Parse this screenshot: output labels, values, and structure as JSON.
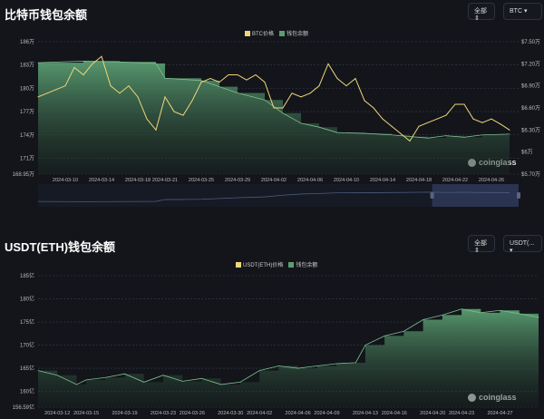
{
  "colors": {
    "price": "#f0d67a",
    "balance": "#5a9e72",
    "grid": "#3a3e48",
    "text": "#bbbbbb"
  },
  "chart_data": [
    {
      "type": "line",
      "title": "比特币钱包余额",
      "filter_label": "全部",
      "coin_label": "BTC",
      "legend": [
        "BTC价格",
        "钱包余额"
      ],
      "brand": "coinglass",
      "left_ticks": [
        "186万",
        "183万",
        "180万",
        "177万",
        "174万",
        "171万",
        "168.95万"
      ],
      "left_values": [
        186,
        183,
        180,
        177,
        174,
        171,
        168.95
      ],
      "ylim_left": [
        168.95,
        186
      ],
      "right_ticks": [
        "$7.50万",
        "$7.20万",
        "$6.90万",
        "$6.60万",
        "$6.30万",
        "$6万",
        "$5.70万"
      ],
      "right_values": [
        7.5,
        7.2,
        6.9,
        6.6,
        6.3,
        6.0,
        5.7
      ],
      "ylim_right": [
        5.7,
        7.5
      ],
      "x_ticks": [
        "2024-03-10",
        "2024-03-14",
        "2024-03-18",
        "2024-03-21",
        "2024-03-25",
        "2024-03-29",
        "2024-04-02",
        "2024-04-06",
        "2024-04-10",
        "2024-04-14",
        "2024-04-18",
        "2024-04-22",
        "2024-04-26"
      ],
      "xlim": [
        "2024-03-07",
        "2024-04-29"
      ],
      "balance": [
        [
          "2024-03-07",
          183.3
        ],
        [
          "2024-03-12",
          183.5
        ],
        [
          "2024-03-16",
          183.4
        ],
        [
          "2024-03-20",
          183.2
        ],
        [
          "2024-03-21",
          181.3
        ],
        [
          "2024-03-25",
          181.0
        ],
        [
          "2024-03-27",
          180.2
        ],
        [
          "2024-03-29",
          179.4
        ],
        [
          "2024-04-01",
          178.5
        ],
        [
          "2024-04-03",
          176.8
        ],
        [
          "2024-04-05",
          175.5
        ],
        [
          "2024-04-07",
          175.0
        ],
        [
          "2024-04-09",
          174.3
        ],
        [
          "2024-04-12",
          174.2
        ],
        [
          "2024-04-15",
          174.0
        ],
        [
          "2024-04-17",
          173.8
        ],
        [
          "2024-04-19",
          173.6
        ],
        [
          "2024-04-21",
          173.9
        ],
        [
          "2024-04-23",
          173.7
        ],
        [
          "2024-04-25",
          174.0
        ],
        [
          "2024-04-28",
          174.1
        ]
      ],
      "price": [
        [
          "2024-03-07",
          6.75
        ],
        [
          "2024-03-08",
          6.8
        ],
        [
          "2024-03-09",
          6.85
        ],
        [
          "2024-03-10",
          6.9
        ],
        [
          "2024-03-11",
          7.15
        ],
        [
          "2024-03-12",
          7.05
        ],
        [
          "2024-03-13",
          7.2
        ],
        [
          "2024-03-14",
          7.3
        ],
        [
          "2024-03-15",
          6.9
        ],
        [
          "2024-03-16",
          6.8
        ],
        [
          "2024-03-17",
          6.9
        ],
        [
          "2024-03-18",
          6.75
        ],
        [
          "2024-03-19",
          6.45
        ],
        [
          "2024-03-20",
          6.3
        ],
        [
          "2024-03-21",
          6.75
        ],
        [
          "2024-03-22",
          6.55
        ],
        [
          "2024-03-23",
          6.5
        ],
        [
          "2024-03-24",
          6.7
        ],
        [
          "2024-03-25",
          6.95
        ],
        [
          "2024-03-26",
          7.0
        ],
        [
          "2024-03-27",
          6.95
        ],
        [
          "2024-03-28",
          7.05
        ],
        [
          "2024-03-29",
          7.05
        ],
        [
          "2024-03-30",
          6.98
        ],
        [
          "2024-03-31",
          7.05
        ],
        [
          "2024-04-01",
          6.95
        ],
        [
          "2024-04-02",
          6.6
        ],
        [
          "2024-04-03",
          6.6
        ],
        [
          "2024-04-04",
          6.8
        ],
        [
          "2024-04-05",
          6.75
        ],
        [
          "2024-04-06",
          6.8
        ],
        [
          "2024-04-07",
          6.9
        ],
        [
          "2024-04-08",
          7.2
        ],
        [
          "2024-04-09",
          7.0
        ],
        [
          "2024-04-10",
          6.9
        ],
        [
          "2024-04-11",
          7.0
        ],
        [
          "2024-04-12",
          6.7
        ],
        [
          "2024-04-13",
          6.6
        ],
        [
          "2024-04-14",
          6.45
        ],
        [
          "2024-04-15",
          6.35
        ],
        [
          "2024-04-16",
          6.25
        ],
        [
          "2024-04-17",
          6.15
        ],
        [
          "2024-04-18",
          6.35
        ],
        [
          "2024-04-19",
          6.4
        ],
        [
          "2024-04-20",
          6.45
        ],
        [
          "2024-04-21",
          6.5
        ],
        [
          "2024-04-22",
          6.65
        ],
        [
          "2024-04-23",
          6.65
        ],
        [
          "2024-04-24",
          6.45
        ],
        [
          "2024-04-25",
          6.4
        ],
        [
          "2024-04-26",
          6.45
        ],
        [
          "2024-04-27",
          6.38
        ],
        [
          "2024-04-28",
          6.3
        ]
      ],
      "zoom_window": [
        0.82,
        1.0
      ]
    },
    {
      "type": "area",
      "title": "USDT(ETH)钱包余额",
      "filter_label": "全部",
      "coin_label": "USDT(...",
      "legend": [
        "USDT(ETH)价格",
        "钱包余额"
      ],
      "brand": "coinglass",
      "left_ticks": [
        "185亿",
        "180亿",
        "175亿",
        "170亿",
        "165亿",
        "160亿",
        "156.59亿"
      ],
      "left_values": [
        185,
        180,
        175,
        170,
        165,
        160,
        156.59
      ],
      "ylim_left": [
        156.59,
        185
      ],
      "x_ticks": [
        "2024-03-12",
        "2024-03-15",
        "2024-03-19",
        "2024-03-23",
        "2024-03-26",
        "2024-03-30",
        "2024-04-02",
        "2024-04-06",
        "2024-04-09",
        "2024-04-13",
        "2024-04-16",
        "2024-04-20",
        "2024-04-23",
        "2024-04-27"
      ],
      "xlim": [
        "2024-03-10",
        "2024-05-01"
      ],
      "balance": [
        [
          "2024-03-10",
          164.5
        ],
        [
          "2024-03-12",
          163.5
        ],
        [
          "2024-03-14",
          161.5
        ],
        [
          "2024-03-15",
          162.5
        ],
        [
          "2024-03-17",
          163
        ],
        [
          "2024-03-19",
          163.8
        ],
        [
          "2024-03-21",
          162
        ],
        [
          "2024-03-23",
          163.5
        ],
        [
          "2024-03-25",
          162.2
        ],
        [
          "2024-03-27",
          162.8
        ],
        [
          "2024-03-29",
          161.5
        ],
        [
          "2024-03-31",
          162
        ],
        [
          "2024-04-02",
          164.5
        ],
        [
          "2024-04-04",
          165.5
        ],
        [
          "2024-04-06",
          165
        ],
        [
          "2024-04-08",
          165.5
        ],
        [
          "2024-04-10",
          166
        ],
        [
          "2024-04-12",
          166.2
        ],
        [
          "2024-04-13",
          170
        ],
        [
          "2024-04-15",
          172
        ],
        [
          "2024-04-17",
          173
        ],
        [
          "2024-04-19",
          175.5
        ],
        [
          "2024-04-21",
          176.5
        ],
        [
          "2024-04-23",
          177.8
        ],
        [
          "2024-04-25",
          177
        ],
        [
          "2024-04-27",
          177.5
        ],
        [
          "2024-04-29",
          176.8
        ],
        [
          "2024-05-01",
          176
        ]
      ]
    }
  ]
}
